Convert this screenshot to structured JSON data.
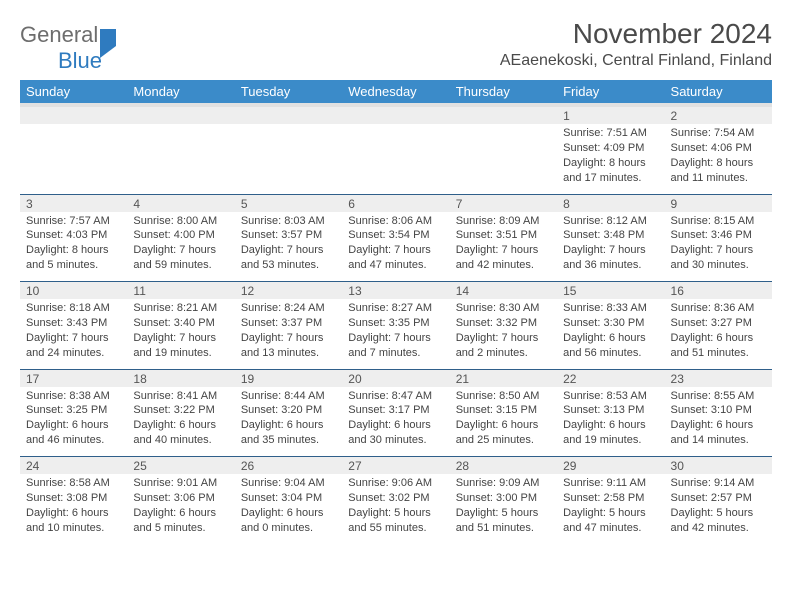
{
  "brand": {
    "part1": "General",
    "part2": "Blue"
  },
  "title": "November 2024",
  "location": "AEaenekoski, Central Finland, Finland",
  "day_headers": [
    "Sunday",
    "Monday",
    "Tuesday",
    "Wednesday",
    "Thursday",
    "Friday",
    "Saturday"
  ],
  "colors": {
    "header_bg": "#3b8bc9",
    "header_text": "#ffffff",
    "daynum_bg": "#eeeeee",
    "rule": "#2f5f8a",
    "brand_gray": "#6d6d6d",
    "brand_blue": "#2f7bbf"
  },
  "weeks": [
    [
      {
        "n": "",
        "sr": "",
        "ss": "",
        "dl": ""
      },
      {
        "n": "",
        "sr": "",
        "ss": "",
        "dl": ""
      },
      {
        "n": "",
        "sr": "",
        "ss": "",
        "dl": ""
      },
      {
        "n": "",
        "sr": "",
        "ss": "",
        "dl": ""
      },
      {
        "n": "",
        "sr": "",
        "ss": "",
        "dl": ""
      },
      {
        "n": "1",
        "sr": "Sunrise: 7:51 AM",
        "ss": "Sunset: 4:09 PM",
        "dl": "Daylight: 8 hours and 17 minutes."
      },
      {
        "n": "2",
        "sr": "Sunrise: 7:54 AM",
        "ss": "Sunset: 4:06 PM",
        "dl": "Daylight: 8 hours and 11 minutes."
      }
    ],
    [
      {
        "n": "3",
        "sr": "Sunrise: 7:57 AM",
        "ss": "Sunset: 4:03 PM",
        "dl": "Daylight: 8 hours and 5 minutes."
      },
      {
        "n": "4",
        "sr": "Sunrise: 8:00 AM",
        "ss": "Sunset: 4:00 PM",
        "dl": "Daylight: 7 hours and 59 minutes."
      },
      {
        "n": "5",
        "sr": "Sunrise: 8:03 AM",
        "ss": "Sunset: 3:57 PM",
        "dl": "Daylight: 7 hours and 53 minutes."
      },
      {
        "n": "6",
        "sr": "Sunrise: 8:06 AM",
        "ss": "Sunset: 3:54 PM",
        "dl": "Daylight: 7 hours and 47 minutes."
      },
      {
        "n": "7",
        "sr": "Sunrise: 8:09 AM",
        "ss": "Sunset: 3:51 PM",
        "dl": "Daylight: 7 hours and 42 minutes."
      },
      {
        "n": "8",
        "sr": "Sunrise: 8:12 AM",
        "ss": "Sunset: 3:48 PM",
        "dl": "Daylight: 7 hours and 36 minutes."
      },
      {
        "n": "9",
        "sr": "Sunrise: 8:15 AM",
        "ss": "Sunset: 3:46 PM",
        "dl": "Daylight: 7 hours and 30 minutes."
      }
    ],
    [
      {
        "n": "10",
        "sr": "Sunrise: 8:18 AM",
        "ss": "Sunset: 3:43 PM",
        "dl": "Daylight: 7 hours and 24 minutes."
      },
      {
        "n": "11",
        "sr": "Sunrise: 8:21 AM",
        "ss": "Sunset: 3:40 PM",
        "dl": "Daylight: 7 hours and 19 minutes."
      },
      {
        "n": "12",
        "sr": "Sunrise: 8:24 AM",
        "ss": "Sunset: 3:37 PM",
        "dl": "Daylight: 7 hours and 13 minutes."
      },
      {
        "n": "13",
        "sr": "Sunrise: 8:27 AM",
        "ss": "Sunset: 3:35 PM",
        "dl": "Daylight: 7 hours and 7 minutes."
      },
      {
        "n": "14",
        "sr": "Sunrise: 8:30 AM",
        "ss": "Sunset: 3:32 PM",
        "dl": "Daylight: 7 hours and 2 minutes."
      },
      {
        "n": "15",
        "sr": "Sunrise: 8:33 AM",
        "ss": "Sunset: 3:30 PM",
        "dl": "Daylight: 6 hours and 56 minutes."
      },
      {
        "n": "16",
        "sr": "Sunrise: 8:36 AM",
        "ss": "Sunset: 3:27 PM",
        "dl": "Daylight: 6 hours and 51 minutes."
      }
    ],
    [
      {
        "n": "17",
        "sr": "Sunrise: 8:38 AM",
        "ss": "Sunset: 3:25 PM",
        "dl": "Daylight: 6 hours and 46 minutes."
      },
      {
        "n": "18",
        "sr": "Sunrise: 8:41 AM",
        "ss": "Sunset: 3:22 PM",
        "dl": "Daylight: 6 hours and 40 minutes."
      },
      {
        "n": "19",
        "sr": "Sunrise: 8:44 AM",
        "ss": "Sunset: 3:20 PM",
        "dl": "Daylight: 6 hours and 35 minutes."
      },
      {
        "n": "20",
        "sr": "Sunrise: 8:47 AM",
        "ss": "Sunset: 3:17 PM",
        "dl": "Daylight: 6 hours and 30 minutes."
      },
      {
        "n": "21",
        "sr": "Sunrise: 8:50 AM",
        "ss": "Sunset: 3:15 PM",
        "dl": "Daylight: 6 hours and 25 minutes."
      },
      {
        "n": "22",
        "sr": "Sunrise: 8:53 AM",
        "ss": "Sunset: 3:13 PM",
        "dl": "Daylight: 6 hours and 19 minutes."
      },
      {
        "n": "23",
        "sr": "Sunrise: 8:55 AM",
        "ss": "Sunset: 3:10 PM",
        "dl": "Daylight: 6 hours and 14 minutes."
      }
    ],
    [
      {
        "n": "24",
        "sr": "Sunrise: 8:58 AM",
        "ss": "Sunset: 3:08 PM",
        "dl": "Daylight: 6 hours and 10 minutes."
      },
      {
        "n": "25",
        "sr": "Sunrise: 9:01 AM",
        "ss": "Sunset: 3:06 PM",
        "dl": "Daylight: 6 hours and 5 minutes."
      },
      {
        "n": "26",
        "sr": "Sunrise: 9:04 AM",
        "ss": "Sunset: 3:04 PM",
        "dl": "Daylight: 6 hours and 0 minutes."
      },
      {
        "n": "27",
        "sr": "Sunrise: 9:06 AM",
        "ss": "Sunset: 3:02 PM",
        "dl": "Daylight: 5 hours and 55 minutes."
      },
      {
        "n": "28",
        "sr": "Sunrise: 9:09 AM",
        "ss": "Sunset: 3:00 PM",
        "dl": "Daylight: 5 hours and 51 minutes."
      },
      {
        "n": "29",
        "sr": "Sunrise: 9:11 AM",
        "ss": "Sunset: 2:58 PM",
        "dl": "Daylight: 5 hours and 47 minutes."
      },
      {
        "n": "30",
        "sr": "Sunrise: 9:14 AM",
        "ss": "Sunset: 2:57 PM",
        "dl": "Daylight: 5 hours and 42 minutes."
      }
    ]
  ]
}
